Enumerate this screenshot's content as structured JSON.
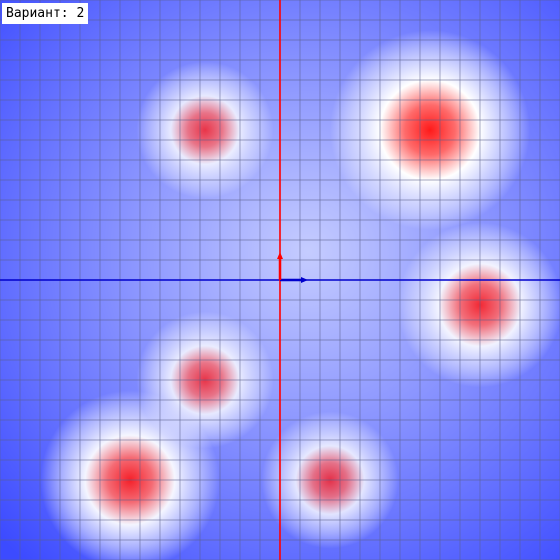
{
  "variant_label": "Вариант: 2",
  "colors": {
    "background_dark": "#3c4bff",
    "background_light": "#c5ccff",
    "hotspot_peak": "#ff1a1a",
    "grid": "#5a5f8c",
    "x_axis": "#0000cc",
    "y_axis": "#ff0000",
    "x_unit_vector": "#0000cc",
    "y_unit_vector": "#ff0000"
  },
  "field": {
    "type": "heatmap",
    "grid_cells_per_axis": 28,
    "sources": [
      {
        "x": 150,
        "y": 150,
        "strength": 1.0
      },
      {
        "x": -75,
        "y": 150,
        "strength": 0.55
      },
      {
        "x": 200,
        "y": -25,
        "strength": 0.75
      },
      {
        "x": -75,
        "y": -100,
        "strength": 0.55
      },
      {
        "x": -150,
        "y": -200,
        "strength": 0.85
      },
      {
        "x": 50,
        "y": -200,
        "strength": 0.55
      }
    ]
  }
}
